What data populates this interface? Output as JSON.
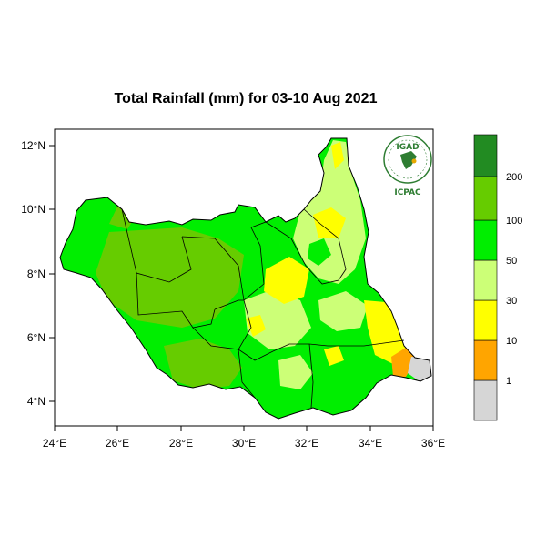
{
  "title": "Total Rainfall (mm) for 03-10 Aug 2021",
  "map": {
    "region": "South Sudan",
    "lon_range": [
      24,
      36
    ],
    "lat_range": [
      3.4,
      12.4
    ],
    "x_ticks": [
      "24°E",
      "26°E",
      "28°E",
      "30°E",
      "32°E",
      "34°E",
      "36°E"
    ],
    "y_ticks": [
      "12°N",
      "10°N",
      "8°N",
      "6°N",
      "4°N"
    ]
  },
  "legend": {
    "colors": [
      "#d6d6d6",
      "#ffa500",
      "#ffff00",
      "#ccff77",
      "#00ee00",
      "#66cc00",
      "#228b22"
    ],
    "labels": [
      "1",
      "10",
      "30",
      "50",
      "100",
      "200"
    ]
  },
  "logo": {
    "top_text": "IGAD",
    "bottom_text": "ICPAC"
  }
}
